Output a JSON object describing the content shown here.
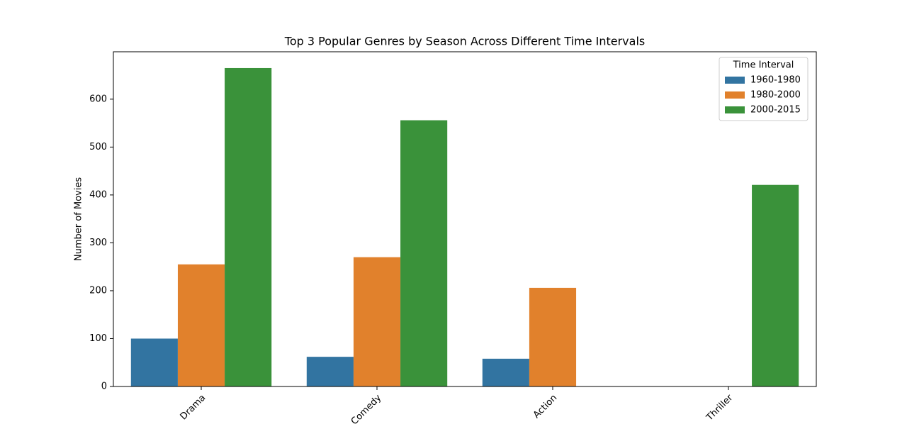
{
  "chart_data": {
    "type": "bar",
    "title": "Top 3 Popular Genres by Season Across Different Time Intervals",
    "ylabel": "Number of Movies",
    "categories": [
      "Drama",
      "Comedy",
      "Action",
      "Thriller"
    ],
    "series": [
      {
        "name": "1960-1980",
        "color": "#3274a1",
        "values": [
          100,
          62,
          58,
          null
        ]
      },
      {
        "name": "1980-2000",
        "color": "#e1812c",
        "values": [
          255,
          270,
          206,
          null
        ]
      },
      {
        "name": "2000-2015",
        "color": "#3a923a",
        "values": [
          665,
          556,
          null,
          421
        ]
      }
    ],
    "legend_title": "Time Interval",
    "legend_position": "upper-right",
    "ylim": [
      0,
      699
    ],
    "yticks": [
      0,
      100,
      200,
      300,
      400,
      500,
      600
    ],
    "grid": false
  }
}
